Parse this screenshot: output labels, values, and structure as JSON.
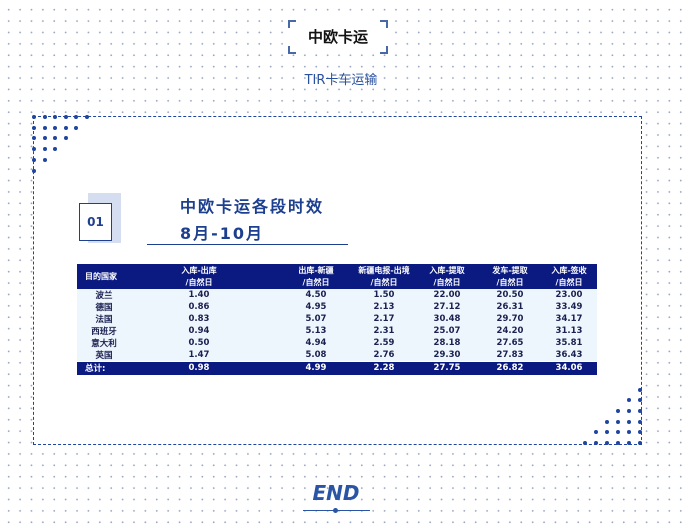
{
  "header": {
    "title": "中欧卡运",
    "subtitle": "TIR卡车运输"
  },
  "section": {
    "number": "01",
    "title": "中欧卡运各段时效",
    "period": "8月-10月"
  },
  "table": {
    "columns": [
      [
        "目的国家",
        ""
      ],
      [
        "入库-出库",
        "/自然日"
      ],
      [
        "出库-新疆",
        "/自然日"
      ],
      [
        "新疆电报-出境",
        "/自然日"
      ],
      [
        "入库-提取",
        "/自然日"
      ],
      [
        "发车-提取",
        "/自然日"
      ],
      [
        "入库-签收",
        "/自然日"
      ]
    ],
    "rows": [
      [
        "波兰",
        "1.40",
        "4.50",
        "1.50",
        "22.00",
        "20.50",
        "23.00"
      ],
      [
        "德国",
        "0.86",
        "4.95",
        "2.13",
        "27.12",
        "26.31",
        "33.49"
      ],
      [
        "法国",
        "0.83",
        "5.07",
        "2.17",
        "30.48",
        "29.70",
        "34.17"
      ],
      [
        "西班牙",
        "0.94",
        "5.13",
        "2.31",
        "25.07",
        "24.20",
        "31.13"
      ],
      [
        "意大利",
        "0.50",
        "4.94",
        "2.59",
        "28.18",
        "27.65",
        "35.81"
      ],
      [
        "英国",
        "1.47",
        "5.08",
        "2.76",
        "29.30",
        "27.83",
        "36.43"
      ]
    ],
    "total": [
      "总计:",
      "0.98",
      "4.99",
      "2.28",
      "27.75",
      "26.82",
      "34.06"
    ]
  },
  "footer": {
    "end": "END"
  },
  "colors": {
    "accent": "#1f45a0",
    "table_header": "#0a1a80",
    "table_body": "#eef6fd"
  }
}
